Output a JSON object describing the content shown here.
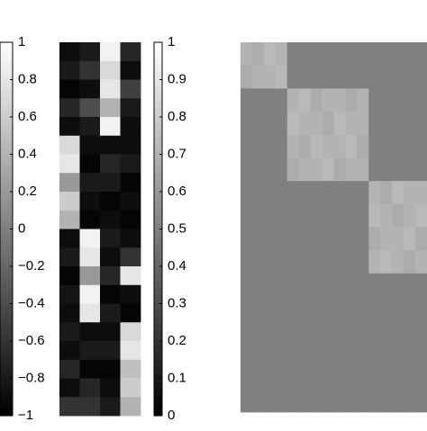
{
  "chart_data": [
    {
      "type": "colorbar",
      "ylim": [
        -1,
        1
      ],
      "yticks": [
        1,
        0.8,
        0.6,
        0.4,
        0.2,
        0,
        {
          "value": -0.2,
          "label": "−0.2"
        },
        {
          "value": -0.4,
          "label": "−0.4"
        },
        {
          "value": -0.6,
          "label": "−0.6"
        },
        {
          "value": -0.8,
          "label": "−0.8"
        },
        {
          "value": -1,
          "label": "−1"
        }
      ]
    },
    {
      "type": "heatmap",
      "zlim": [
        0,
        1
      ],
      "values": [
        [
          0.05,
          0.1,
          0.95,
          0.15
        ],
        [
          0.1,
          0.2,
          0.85,
          0.05
        ],
        [
          0.02,
          0.05,
          0.9,
          0.25
        ],
        [
          0.15,
          0.3,
          0.7,
          0.1
        ],
        [
          0.05,
          0.1,
          0.95,
          0.05
        ],
        [
          0.85,
          0.05,
          0.05,
          0.05
        ],
        [
          0.9,
          0.02,
          0.15,
          0.1
        ],
        [
          0.6,
          0.1,
          0.1,
          0.02
        ],
        [
          0.8,
          0.05,
          0.02,
          0.05
        ],
        [
          0.7,
          0.02,
          0.05,
          0.02
        ],
        [
          0.05,
          0.95,
          0.1,
          0.05
        ],
        [
          0.1,
          0.9,
          0.05,
          0.2
        ],
        [
          0.02,
          0.6,
          0.15,
          0.9
        ],
        [
          0.08,
          0.95,
          0.02,
          0.05
        ],
        [
          0.05,
          0.9,
          0.1,
          0.02
        ],
        [
          0.1,
          0.05,
          0.05,
          0.85
        ],
        [
          0.05,
          0.1,
          0.1,
          0.9
        ],
        [
          0.15,
          0.02,
          0.02,
          0.75
        ],
        [
          0.05,
          0.15,
          0.05,
          0.8
        ],
        [
          0.2,
          0.2,
          0.1,
          0.7
        ]
      ]
    },
    {
      "type": "colorbar",
      "ylim": [
        0,
        1
      ],
      "yticks": [
        1,
        0.9,
        0.8,
        0.7,
        0.6,
        0.5,
        0.4,
        0.3,
        0.2,
        0.1,
        0
      ]
    },
    {
      "type": "heatmap",
      "zlim": [
        -1,
        1
      ],
      "values": [
        [
          0.4,
          0.35,
          0.45,
          0.4,
          0,
          0,
          0,
          0,
          0,
          0,
          0,
          0,
          0,
          0,
          0,
          0
        ],
        [
          0.35,
          0.4,
          0.4,
          0.45,
          0,
          0,
          0,
          0,
          0,
          0,
          0,
          0,
          0,
          0,
          0,
          0
        ],
        [
          0,
          0,
          0,
          0,
          0.4,
          0.45,
          0.35,
          0.4,
          0.4,
          0.35,
          0.4,
          0,
          0,
          0,
          0,
          0
        ],
        [
          0,
          0,
          0,
          0,
          0.45,
          0.4,
          0.4,
          0.35,
          0.45,
          0.4,
          0.4,
          0,
          0,
          0,
          0,
          0
        ],
        [
          0,
          0,
          0,
          0,
          0.4,
          0.35,
          0.45,
          0.4,
          0.4,
          0.45,
          0.35,
          0,
          0,
          0,
          0,
          0
        ],
        [
          0,
          0,
          0,
          0,
          0.35,
          0.4,
          0.4,
          0.45,
          0.35,
          0.4,
          0.4,
          0,
          0,
          0,
          0,
          0
        ],
        [
          0,
          0,
          0,
          0,
          0,
          0,
          0,
          0,
          0,
          0,
          0,
          0.4,
          0.35,
          0.45,
          0.4,
          0.4
        ],
        [
          0,
          0,
          0,
          0,
          0,
          0,
          0,
          0,
          0,
          0,
          0,
          0.45,
          0.4,
          0.35,
          0.4,
          0.45
        ],
        [
          0,
          0,
          0,
          0,
          0,
          0,
          0,
          0,
          0,
          0,
          0,
          0.35,
          0.4,
          0.4,
          0.45,
          0.35
        ],
        [
          0,
          0,
          0,
          0,
          0,
          0,
          0,
          0,
          0,
          0,
          0,
          0.4,
          0.45,
          0.4,
          0.35,
          0.4
        ],
        [
          0,
          0,
          0,
          0,
          0,
          0,
          0,
          0,
          0,
          0,
          0,
          0,
          0,
          0,
          0,
          0
        ],
        [
          0,
          0,
          0,
          0,
          0,
          0,
          0,
          0,
          0,
          0,
          0,
          0,
          0,
          0,
          0,
          0
        ],
        [
          0,
          0,
          0,
          0,
          0,
          0,
          0,
          0,
          0,
          0,
          0,
          0,
          0,
          0,
          0,
          0
        ],
        [
          0,
          0,
          0,
          0,
          0,
          0,
          0,
          0,
          0,
          0,
          0,
          0,
          0,
          0,
          0,
          0
        ],
        [
          0,
          0,
          0,
          0,
          0,
          0,
          0,
          0,
          0,
          0,
          0,
          0,
          0,
          0,
          0,
          0
        ],
        [
          0,
          0,
          0,
          0,
          0,
          0,
          0,
          0,
          0,
          0,
          0,
          0,
          0,
          0,
          0,
          0
        ]
      ]
    }
  ]
}
